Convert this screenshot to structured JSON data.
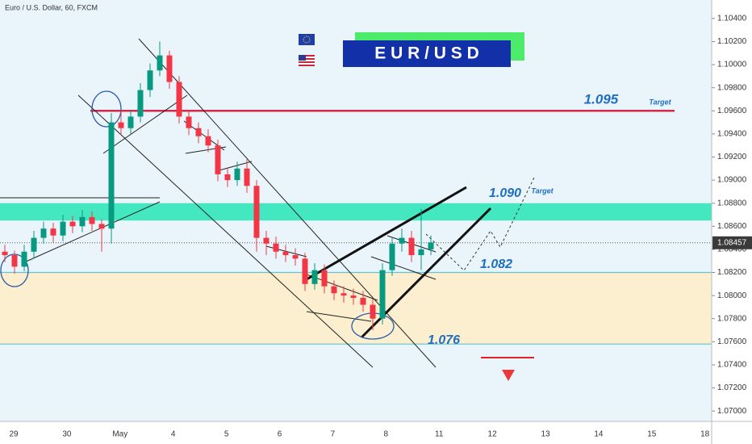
{
  "chart_data": {
    "type": "candlestick",
    "title": "Euro / U.S. Dollar, 60, FXCM",
    "badge": "E U R / U S D",
    "up_color": "#089981",
    "down_color": "#f23645",
    "ylim": [
      1.0691,
      1.1056
    ],
    "yticks": [
      {
        "value": 1.104,
        "label": "1.10400"
      },
      {
        "value": 1.102,
        "label": "1.10200"
      },
      {
        "value": 1.1,
        "label": "1.10000"
      },
      {
        "value": 1.098,
        "label": "1.09800"
      },
      {
        "value": 1.096,
        "label": "1.09600"
      },
      {
        "value": 1.094,
        "label": "1.09400"
      },
      {
        "value": 1.092,
        "label": "1.09200"
      },
      {
        "value": 1.09,
        "label": "1.09000"
      },
      {
        "value": 1.088,
        "label": "1.08800"
      },
      {
        "value": 1.086,
        "label": "1.08600"
      },
      {
        "value": 1.084,
        "label": "1.08400"
      },
      {
        "value": 1.082,
        "label": "1.08200"
      },
      {
        "value": 1.08,
        "label": "1.08000"
      },
      {
        "value": 1.078,
        "label": "1.07800"
      },
      {
        "value": 1.076,
        "label": "1.07600"
      },
      {
        "value": 1.074,
        "label": "1.07400"
      },
      {
        "value": 1.072,
        "label": "1.07200"
      },
      {
        "value": 1.07,
        "label": "1.07000"
      }
    ],
    "categories": [
      "29",
      "30",
      "May",
      "4",
      "5",
      "6",
      "7",
      "8",
      "11",
      "12",
      "13",
      "14",
      "15",
      "18"
    ],
    "candles": [
      [
        1.0838,
        1.0844,
        1.0829,
        1.0835
      ],
      [
        1.0835,
        1.0839,
        1.0819,
        1.0825
      ],
      [
        1.0825,
        1.0844,
        1.0821,
        1.0838
      ],
      [
        1.0838,
        1.0856,
        1.0832,
        1.085
      ],
      [
        1.085,
        1.0864,
        1.0845,
        1.0858
      ],
      [
        1.0858,
        1.0863,
        1.0846,
        1.0852
      ],
      [
        1.0852,
        1.087,
        1.0847,
        1.0864
      ],
      [
        1.0864,
        1.0869,
        1.0854,
        1.086
      ],
      [
        1.086,
        1.0874,
        1.0855,
        1.0868
      ],
      [
        1.0868,
        1.0873,
        1.0856,
        1.0862
      ],
      [
        1.0862,
        1.0866,
        1.0838,
        1.0858
      ],
      [
        1.0858,
        1.0958,
        1.0845,
        1.095
      ],
      [
        1.095,
        1.096,
        1.0939,
        1.0945
      ],
      [
        1.0945,
        1.0961,
        1.094,
        1.0955
      ],
      [
        1.0955,
        1.0984,
        1.095,
        1.0978
      ],
      [
        1.0978,
        1.1001,
        1.0972,
        1.0995
      ],
      [
        1.0995,
        1.102,
        1.099,
        1.1008
      ],
      [
        1.1008,
        1.1012,
        1.0979,
        1.0985
      ],
      [
        1.0985,
        1.099,
        1.0949,
        1.0955
      ],
      [
        1.0955,
        1.0961,
        1.0939,
        1.0945
      ],
      [
        1.0945,
        1.095,
        1.0932,
        1.0938
      ],
      [
        1.0938,
        1.0944,
        1.0924,
        1.093
      ],
      [
        1.093,
        1.0935,
        1.0899,
        1.0905
      ],
      [
        1.0905,
        1.0911,
        1.0894,
        1.09
      ],
      [
        1.09,
        1.0916,
        1.0895,
        1.091
      ],
      [
        1.091,
        1.0918,
        1.0889,
        1.0895
      ],
      [
        1.0895,
        1.09,
        1.0838,
        1.085
      ],
      [
        1.085,
        1.0856,
        1.0835,
        1.0845
      ],
      [
        1.0845,
        1.0851,
        1.0832,
        1.0838
      ],
      [
        1.0838,
        1.0844,
        1.0829,
        1.0835
      ],
      [
        1.0835,
        1.0841,
        1.0826,
        1.0832
      ],
      [
        1.0832,
        1.0837,
        1.0804,
        1.081
      ],
      [
        1.081,
        1.0828,
        1.0805,
        1.0822
      ],
      [
        1.0822,
        1.0827,
        1.0802,
        1.0808
      ],
      [
        1.0808,
        1.0813,
        1.0796,
        1.0802
      ],
      [
        1.0802,
        1.0808,
        1.0794,
        1.08
      ],
      [
        1.08,
        1.0806,
        1.0792,
        1.0798
      ],
      [
        1.0798,
        1.0804,
        1.0786,
        1.0792
      ],
      [
        1.0792,
        1.0797,
        1.077,
        1.078
      ],
      [
        1.078,
        1.0828,
        1.0775,
        1.0822
      ],
      [
        1.0822,
        1.0851,
        1.0817,
        1.0845
      ],
      [
        1.0845,
        1.0858,
        1.0838,
        1.085
      ],
      [
        1.085,
        1.0856,
        1.0829,
        1.0835
      ],
      [
        1.0835,
        1.0875,
        1.0822,
        1.084
      ],
      [
        1.084,
        1.0852,
        1.0835,
        1.0846
      ]
    ],
    "current_price": {
      "value": 1.08457,
      "label": "1.08457"
    },
    "zones": [
      {
        "from": 1.0865,
        "to": 1.088,
        "color": "#44e8c0"
      },
      {
        "from": 1.0758,
        "to": 1.082,
        "color": "#fbefcf"
      }
    ],
    "levels": [
      {
        "value": 1.096,
        "color": "#d6284a"
      },
      {
        "value": 1.082,
        "color": "#5ec4d6"
      },
      {
        "value": 1.0758,
        "color": "#5ec4d6"
      }
    ],
    "annotations": [
      "1.095",
      "Target",
      "1.090",
      "Target",
      "1.082",
      "1.076"
    ]
  }
}
